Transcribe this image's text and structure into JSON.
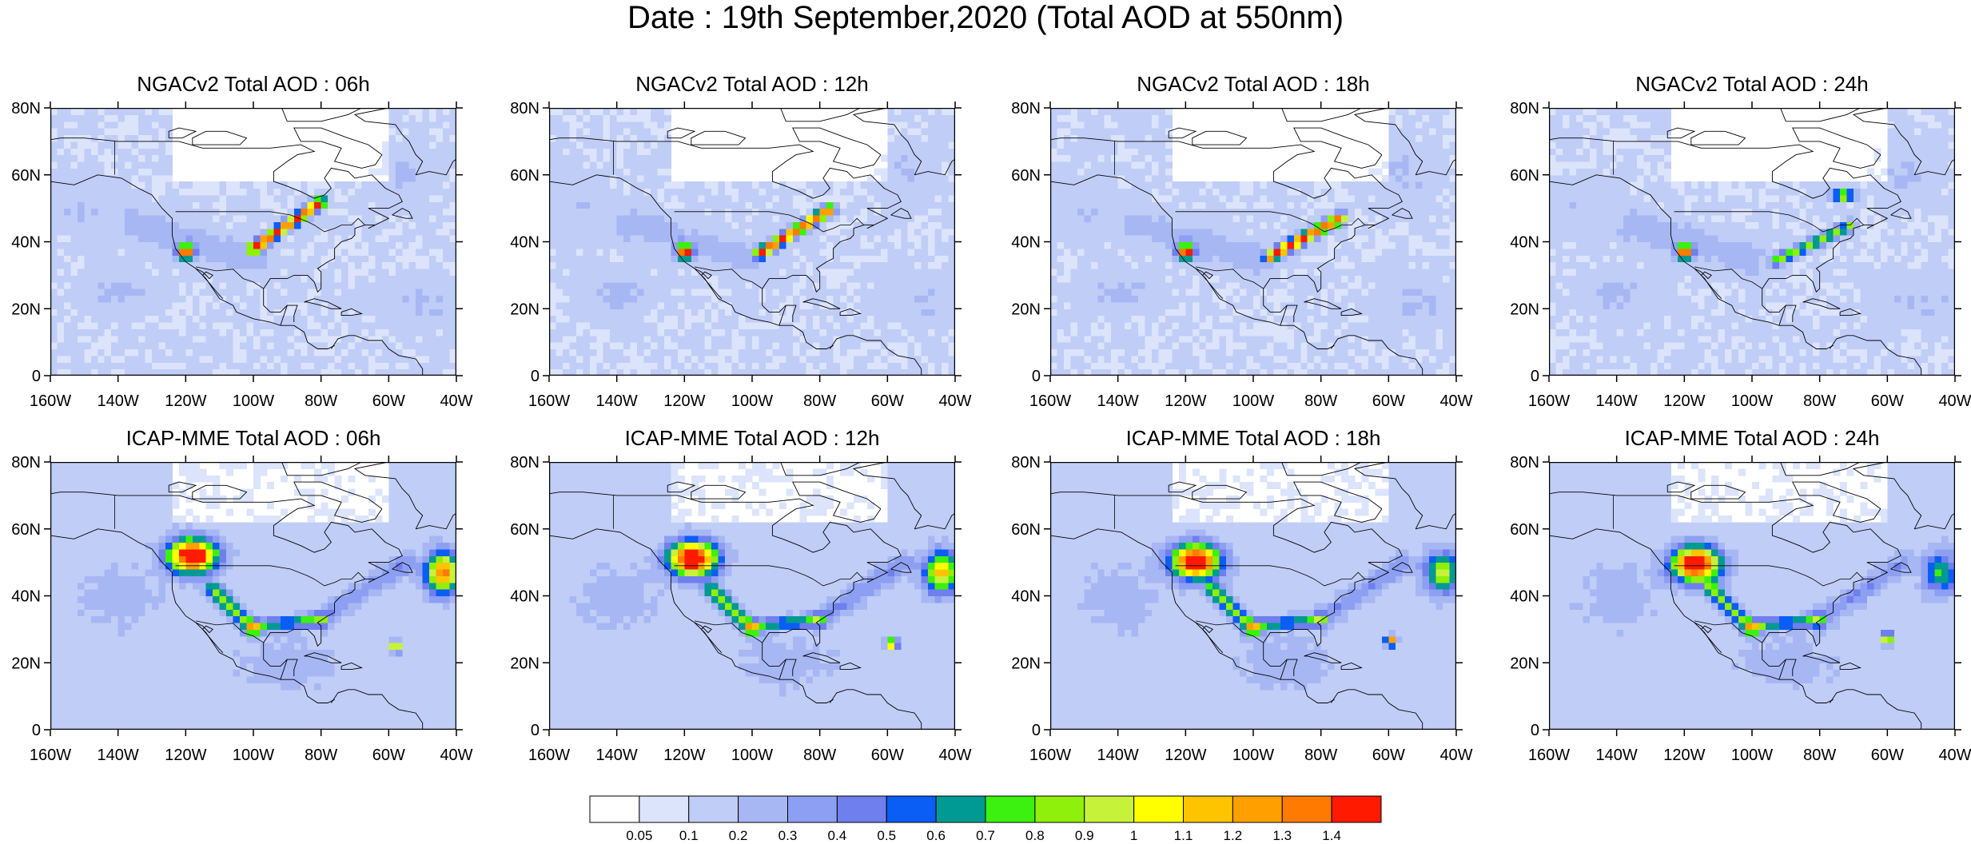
{
  "title": "Date : 19th September,2020 (Total AOD at 550nm)",
  "panels": [
    {
      "title": "NGACv2 Total AOD : 06h"
    },
    {
      "title": "NGACv2 Total AOD : 12h"
    },
    {
      "title": "NGACv2 Total AOD : 18h"
    },
    {
      "title": "NGACv2 Total AOD : 24h"
    },
    {
      "title": "ICAP-MME Total AOD : 06h"
    },
    {
      "title": "ICAP-MME Total AOD : 12h"
    },
    {
      "title": "ICAP-MME Total AOD : 18h"
    },
    {
      "title": "ICAP-MME Total AOD : 24h"
    }
  ],
  "axes": {
    "lon_range": [
      -160,
      -40
    ],
    "lat_range": [
      0,
      80
    ],
    "lon_ticks": [
      "160W",
      "140W",
      "120W",
      "100W",
      "80W",
      "60W",
      "40W"
    ],
    "lat_ticks": [
      "0",
      "20N",
      "40N",
      "60N",
      "80N"
    ]
  },
  "colorbar": {
    "labels": [
      "0.05",
      "0.1",
      "0.2",
      "0.3",
      "0.4",
      "0.5",
      "0.6",
      "0.7",
      "0.8",
      "0.9",
      "1",
      "1.1",
      "1.2",
      "1.3",
      "1.4"
    ],
    "colors": [
      "#ffffff",
      "#dbe4fb",
      "#c0cdf6",
      "#a7b7f4",
      "#8d9ff2",
      "#6f7fee",
      "#0a5df5",
      "#009a94",
      "#3cf00f",
      "#8ef00b",
      "#c7f23a",
      "#ffff00",
      "#ffc400",
      "#ffa000",
      "#ff7a00",
      "#ff1a00"
    ]
  }
}
